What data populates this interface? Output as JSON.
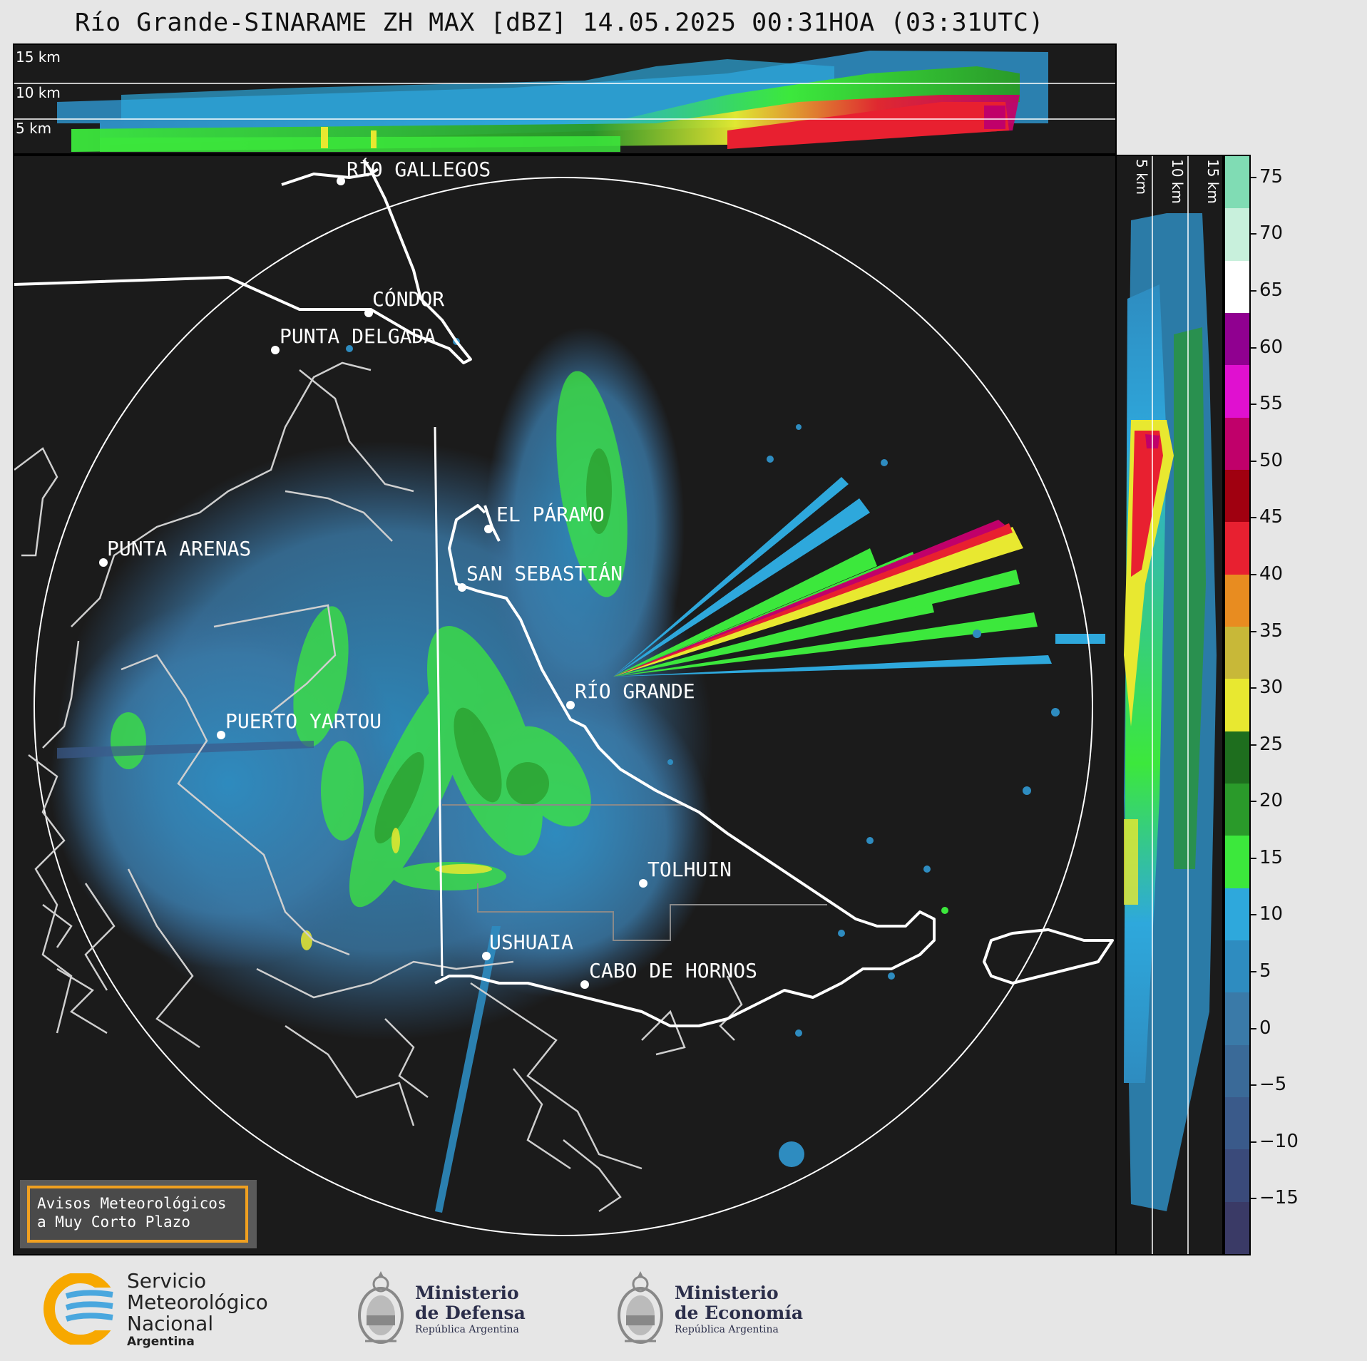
{
  "header": {
    "title": "Río Grande-SINARAME ZH MAX [dBZ] 14.05.2025 00:31HOA (03:31UTC)"
  },
  "top_panel": {
    "levels": [
      "15 km",
      "10 km",
      "5 km"
    ]
  },
  "side_panel": {
    "levels": [
      "5 km",
      "10 km",
      "15 km"
    ]
  },
  "map": {
    "places": [
      {
        "name": "RÍO GALLEGOS"
      },
      {
        "name": "CÓNDOR"
      },
      {
        "name": "PUNTA DELGADA"
      },
      {
        "name": "EL PÁRAMO"
      },
      {
        "name": "PUNTA ARENAS"
      },
      {
        "name": "SAN SEBASTIÁN"
      },
      {
        "name": "RÍO GRANDE"
      },
      {
        "name": "PUERTO YARTOU"
      },
      {
        "name": "TOLHUIN"
      },
      {
        "name": "USHUAIA"
      },
      {
        "name": "CABO DE HORNOS"
      }
    ],
    "notice": {
      "line1": "Avisos Meteorológicos",
      "line2": "a Muy Corto Plazo",
      "border_color": "#f0a020"
    }
  },
  "colorbar": {
    "unit": "dBZ",
    "ticks": [
      "75",
      "70",
      "65",
      "60",
      "55",
      "50",
      "45",
      "40",
      "35",
      "30",
      "25",
      "20",
      "15",
      "10",
      "5",
      "0",
      "−5",
      "−10",
      "−15"
    ],
    "range": [
      -20,
      77
    ],
    "colors": [
      "#3a3a66",
      "#3a4a7a",
      "#3a5a8a",
      "#3a6a98",
      "#3a7aa8",
      "#2e8cc0",
      "#2ea8dc",
      "#3ce83c",
      "#2a9a2a",
      "#1e6e1e",
      "#e8e830",
      "#c8b838",
      "#e88c20",
      "#e82030",
      "#a00010",
      "#c0006a",
      "#e010d0",
      "#900090",
      "#ffffff",
      "#c8f0dc",
      "#80dcb4"
    ]
  },
  "footer": {
    "smn": {
      "line1": "Servicio",
      "line2": "Meteorológico",
      "line3": "Nacional",
      "line4": "Argentina"
    },
    "defensa": {
      "line1": "Ministerio",
      "line2": "de Defensa",
      "line3": "República Argentina"
    },
    "economia": {
      "line1": "Ministerio",
      "line2": "de Economía",
      "line3": "República Argentina"
    }
  }
}
